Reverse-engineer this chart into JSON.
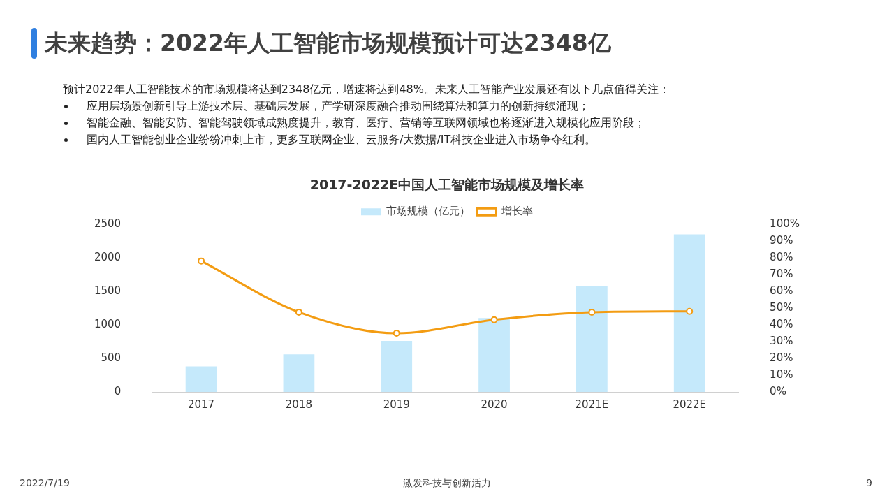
{
  "chart_data": {
    "type": "bar",
    "title": "未来趋势：2022年人工智能市场规模预计可达2348亿",
    "subtitle": "2017-2022E中国人工智能市场规模及增长率",
    "categories": [
      "2017",
      "2018",
      "2019",
      "2020",
      "2021E",
      "2022E"
    ],
    "series": [
      {
        "name": "市场规模（亿元）",
        "color": "#c5e9fb",
        "values": [
          380,
          560,
          760,
          1100,
          1580,
          2348
        ]
      },
      {
        "name": "增长率",
        "type": "line",
        "axis": "y2",
        "color": "#f39c12",
        "values": [
          78,
          47.5,
          35,
          43,
          47.5,
          48
        ]
      }
    ],
    "ylim": [
      0,
      2500
    ],
    "yticks": [
      0,
      500,
      1000,
      1500,
      2000,
      2500
    ],
    "y2lim": [
      0,
      100
    ],
    "y2ticks": [
      {
        "value": 0,
        "label": "0%"
      },
      {
        "value": 10,
        "label": "10%"
      },
      {
        "value": 20,
        "label": "20%"
      },
      {
        "value": 30,
        "label": "30%"
      },
      {
        "value": 40,
        "label": "40%"
      },
      {
        "value": 50,
        "label": "50%"
      },
      {
        "value": 60,
        "label": "60%"
      },
      {
        "value": 70,
        "label": "70%"
      },
      {
        "value": 80,
        "label": "80%"
      },
      {
        "value": 90,
        "label": "90%"
      },
      {
        "value": 100,
        "label": "100%"
      }
    ],
    "grid": false,
    "legend": "top",
    "marker": "circle",
    "line_style": "solid",
    "annotations": [
      "预计2022年人工智能技术的市场规模将达到2348亿元，增速将达到48%。未来人工智能产业发展还有以下几点值得关注：",
      "应用层场景创新引导上游技术层、基础层发展，产学研深度融合推动围绕算法和算力的创新持续涌现；",
      "智能金融、智能安防、智能驾驶领域成熟度提升，教育、医疗、营销等互联网领域也将逐渐进入规模化应用阶段；",
      "国内人工智能创业企业纷纷冲刺上市，更多互联网企业、云服务/大数据/IT科技企业进入市场争夺红利。",
      "2022/7/19",
      "激发科技与创新活力",
      "9"
    ]
  }
}
